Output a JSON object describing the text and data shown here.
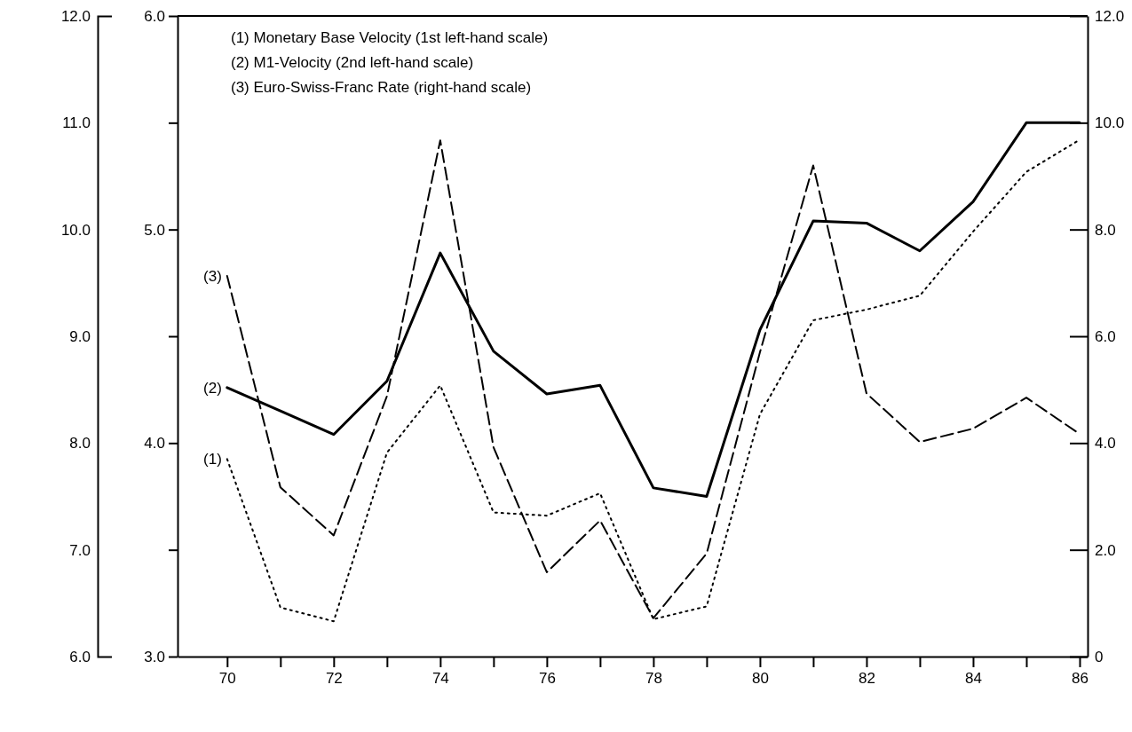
{
  "chart_data": {
    "type": "line",
    "x": [
      70,
      71,
      72,
      73,
      74,
      75,
      76,
      77,
      78,
      79,
      80,
      81,
      82,
      83,
      84,
      85,
      86
    ],
    "xlim": [
      69.07,
      86.15
    ],
    "xticks": [
      70,
      {
        "value": 71,
        "label": null
      },
      72,
      {
        "value": 73,
        "label": null
      },
      74,
      {
        "value": 75,
        "label": null
      },
      76,
      {
        "value": 77,
        "label": null
      },
      78,
      {
        "value": 79,
        "label": null
      },
      80,
      {
        "value": 81,
        "label": null
      },
      82,
      {
        "value": 83,
        "label": null
      },
      84,
      {
        "value": 85,
        "label": null
      },
      86
    ],
    "ylim": [
      6,
      12
    ],
    "yticks": [
      {
        "value": 6,
        "label": "6.0"
      },
      {
        "value": 7,
        "label": "7.0"
      },
      {
        "value": 8,
        "label": "8.0"
      },
      {
        "value": 9,
        "label": "9.0"
      },
      {
        "value": 10,
        "label": "10.0"
      },
      {
        "value": 11,
        "label": "11.0"
      },
      {
        "value": 12,
        "label": "12.0"
      }
    ],
    "y2lim": [
      3,
      6
    ],
    "y2ticks": [
      {
        "value": 3,
        "label": "3.0"
      },
      {
        "value": 3.5,
        "label": null
      },
      {
        "value": 4,
        "label": "4.0"
      },
      {
        "value": 4.5,
        "label": null
      },
      {
        "value": 5,
        "label": "5.0"
      },
      {
        "value": 5.5,
        "label": null
      },
      {
        "value": 6,
        "label": "6.0"
      }
    ],
    "y3lim": [
      0,
      12
    ],
    "y3ticks": [
      0,
      {
        "value": 2,
        "label": "2.0"
      },
      {
        "value": 4,
        "label": "4.0"
      },
      {
        "value": 6,
        "label": "6.0"
      },
      {
        "value": 8,
        "label": "8.0"
      },
      {
        "value": 10,
        "label": "10.0"
      },
      {
        "value": 12,
        "label": "12.0"
      }
    ],
    "grid": false,
    "series": [
      {
        "name": "(1)",
        "color": "#000000",
        "line_style": "dotted",
        "axis": "y",
        "values": [
          7.85,
          6.46,
          6.33,
          7.91,
          8.54,
          7.35,
          7.32,
          7.53,
          6.35,
          6.47,
          8.27,
          9.15,
          9.25,
          9.38,
          9.98,
          10.54,
          10.84
        ]
      },
      {
        "name": "(2)",
        "color": "#000000",
        "line_style": "solid",
        "axis": "y2",
        "values": [
          4.26,
          4.15,
          4.04,
          4.29,
          4.89,
          4.43,
          4.23,
          4.27,
          3.79,
          3.75,
          4.53,
          5.04,
          5.03,
          4.9,
          5.13,
          5.5,
          5.5
        ]
      },
      {
        "name": "(3)",
        "color": "#000000",
        "line_style": "dashed",
        "axis": "y3",
        "values": [
          7.13,
          3.17,
          2.27,
          4.88,
          9.67,
          3.92,
          1.58,
          2.55,
          0.72,
          1.93,
          5.7,
          9.2,
          4.93,
          4.02,
          4.27,
          4.85,
          4.17
        ]
      }
    ],
    "annotations": [
      "(1)  Monetary Base Velocity (1st left-hand scale)",
      "(2)  M1-Velocity (2nd left-hand scale)",
      "(3)  Euro-Swiss-Franc Rate (right-hand scale)"
    ]
  }
}
